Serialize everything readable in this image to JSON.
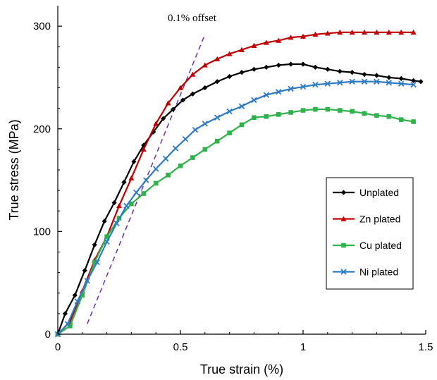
{
  "chart_data": {
    "type": "line",
    "xlabel": "True strain (%)",
    "ylabel": "True stress (MPa)",
    "xlim": [
      0,
      1.5
    ],
    "ylim": [
      0,
      320
    ],
    "x_ticks": [
      "0",
      "0.5",
      "1",
      "1.5"
    ],
    "y_ticks": [
      "0",
      "100",
      "200",
      "300"
    ],
    "grid": false,
    "legend_position": "right-middle",
    "annotation": {
      "text": "0.1% offset",
      "line": [
        [
          0.12,
          10
        ],
        [
          0.6,
          292
        ]
      ],
      "color": "#7030a0"
    },
    "series": [
      {
        "name": "Unplated",
        "color": "#000000",
        "marker": "diamond",
        "x": [
          0.0,
          0.03,
          0.07,
          0.11,
          0.15,
          0.19,
          0.23,
          0.27,
          0.31,
          0.35,
          0.39,
          0.43,
          0.47,
          0.51,
          0.55,
          0.6,
          0.65,
          0.7,
          0.75,
          0.8,
          0.85,
          0.9,
          0.95,
          1.0,
          1.05,
          1.1,
          1.15,
          1.2,
          1.25,
          1.3,
          1.35,
          1.4,
          1.45,
          1.48
        ],
        "y": [
          0,
          20,
          38,
          62,
          87,
          110,
          128,
          148,
          168,
          184,
          197,
          210,
          219,
          228,
          234,
          240,
          246,
          251,
          255,
          258,
          260,
          262,
          263,
          263,
          260,
          258,
          256,
          255,
          253,
          252,
          250,
          249,
          247,
          246
        ]
      },
      {
        "name": "Zn plated",
        "color": "#c00000",
        "marker": "triangle",
        "x": [
          0.0,
          0.05,
          0.1,
          0.15,
          0.2,
          0.25,
          0.3,
          0.35,
          0.4,
          0.45,
          0.5,
          0.55,
          0.6,
          0.65,
          0.7,
          0.75,
          0.8,
          0.85,
          0.9,
          0.95,
          1.0,
          1.05,
          1.1,
          1.15,
          1.2,
          1.25,
          1.3,
          1.35,
          1.4,
          1.45
        ],
        "y": [
          0,
          12,
          42,
          72,
          95,
          125,
          152,
          180,
          205,
          225,
          240,
          253,
          262,
          268,
          273,
          277,
          281,
          284,
          286,
          289,
          290,
          292,
          293,
          294,
          294,
          294,
          294,
          294,
          294,
          294
        ]
      },
      {
        "name": "Cu plated",
        "color": "#2db34a",
        "marker": "square",
        "x": [
          0.0,
          0.05,
          0.1,
          0.15,
          0.2,
          0.25,
          0.3,
          0.35,
          0.4,
          0.45,
          0.5,
          0.55,
          0.6,
          0.65,
          0.7,
          0.75,
          0.8,
          0.85,
          0.9,
          0.95,
          1.0,
          1.05,
          1.1,
          1.15,
          1.2,
          1.25,
          1.3,
          1.35,
          1.4,
          1.45
        ],
        "y": [
          0,
          8,
          38,
          70,
          95,
          113,
          127,
          137,
          147,
          155,
          164,
          172,
          180,
          188,
          196,
          204,
          211,
          212,
          214,
          216,
          218,
          219,
          219,
          218,
          217,
          215,
          213,
          212,
          209,
          207
        ]
      },
      {
        "name": "Ni plated",
        "color": "#2e7bc4",
        "marker": "x",
        "x": [
          0.0,
          0.04,
          0.08,
          0.12,
          0.16,
          0.2,
          0.24,
          0.28,
          0.32,
          0.36,
          0.4,
          0.44,
          0.48,
          0.52,
          0.56,
          0.6,
          0.65,
          0.7,
          0.75,
          0.8,
          0.85,
          0.9,
          0.95,
          1.0,
          1.05,
          1.1,
          1.15,
          1.2,
          1.25,
          1.3,
          1.35,
          1.4,
          1.45
        ],
        "y": [
          0,
          10,
          32,
          52,
          70,
          90,
          108,
          125,
          138,
          150,
          161,
          171,
          181,
          190,
          199,
          205,
          211,
          217,
          222,
          228,
          233,
          236,
          239,
          241,
          243,
          244,
          245,
          246,
          246,
          246,
          245,
          244,
          243
        ]
      }
    ]
  }
}
